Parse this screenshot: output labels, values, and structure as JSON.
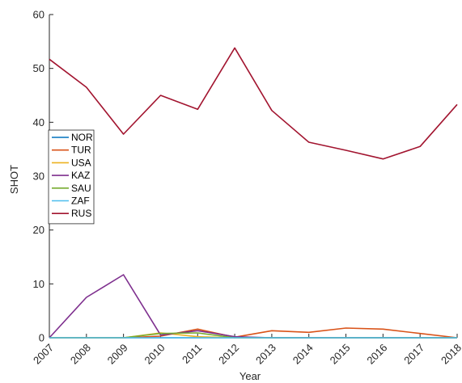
{
  "chart_data": {
    "type": "line",
    "title": "",
    "xlabel": "Year",
    "ylabel": "SHOT",
    "x": [
      2007,
      2008,
      2009,
      2010,
      2011,
      2012,
      2013,
      2014,
      2015,
      2016,
      2017,
      2018
    ],
    "x_tick_labels": [
      "2007",
      "2008",
      "2009",
      "2010",
      "2011",
      "2012",
      "2013",
      "2014",
      "2015",
      "2016",
      "2017",
      "2018"
    ],
    "xlim": [
      2007,
      2018
    ],
    "ylim": [
      0,
      60
    ],
    "y_ticks": [
      0,
      10,
      20,
      30,
      40,
      50,
      60
    ],
    "grid": false,
    "legend_position": "left, mid-height",
    "series": [
      {
        "name": "NOR",
        "color": "#0072BD",
        "values": [
          0,
          0,
          0,
          0,
          0,
          0,
          0,
          0,
          0,
          0,
          0,
          0
        ]
      },
      {
        "name": "TUR",
        "color": "#D95319",
        "values": [
          0,
          0,
          0,
          0.3,
          1.6,
          0.1,
          1.3,
          1.0,
          1.8,
          1.6,
          0.8,
          0
        ]
      },
      {
        "name": "USA",
        "color": "#EDB120",
        "values": [
          0,
          0,
          0,
          0.9,
          0.2,
          0,
          0,
          0,
          0,
          0,
          0,
          0
        ]
      },
      {
        "name": "KAZ",
        "color": "#7E2F8E",
        "values": [
          0,
          7.5,
          11.7,
          0.5,
          1.3,
          0.2,
          0,
          0,
          0,
          0,
          0,
          0
        ]
      },
      {
        "name": "SAU",
        "color": "#77AC30",
        "values": [
          0,
          0,
          0,
          0.8,
          0.9,
          0,
          0,
          0,
          0,
          0,
          0,
          0
        ]
      },
      {
        "name": "ZAF",
        "color": "#4DBEEE",
        "values": [
          0,
          0,
          0,
          0,
          0,
          0,
          0,
          0,
          0,
          0,
          0,
          0
        ]
      },
      {
        "name": "RUS",
        "color": "#A2142F",
        "values": [
          51.7,
          46.5,
          37.8,
          45.0,
          42.4,
          53.8,
          42.2,
          36.3,
          34.8,
          33.2,
          35.5,
          43.3
        ]
      }
    ]
  }
}
